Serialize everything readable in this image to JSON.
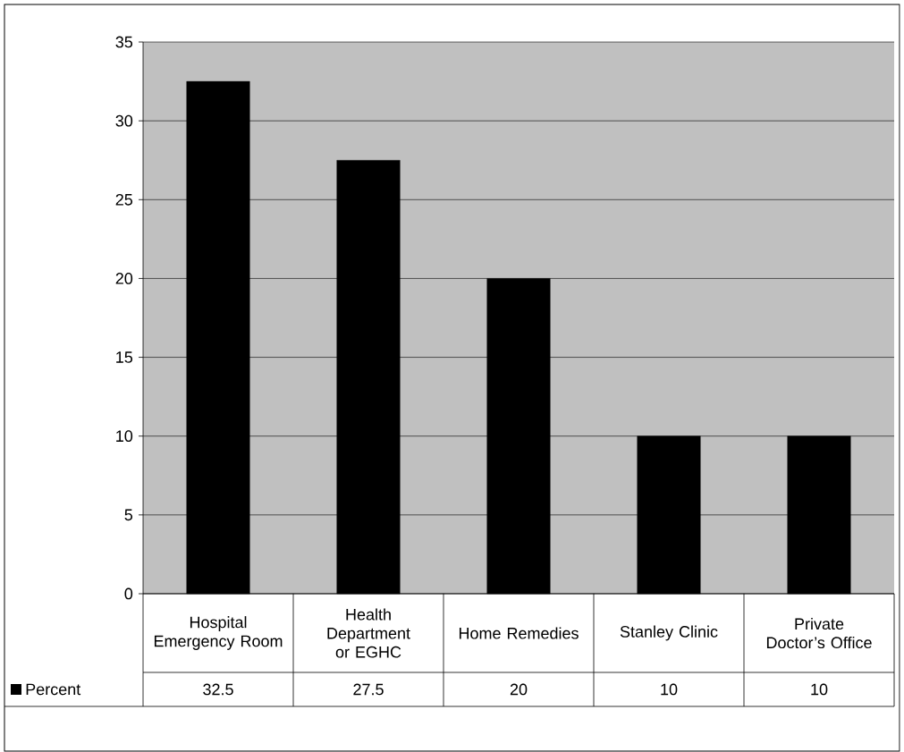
{
  "chart_data": {
    "type": "bar",
    "categories": [
      "Hospital Emergency Room",
      "Health Department or EGHC",
      "Home Remedies",
      "Stanley Clinic",
      "Private Doctor’s Office"
    ],
    "series": [
      {
        "name": "Percent",
        "color": "#000000",
        "values": [
          32.5,
          27.5,
          20,
          10,
          10
        ]
      }
    ],
    "ylim": [
      0,
      35
    ],
    "yticks": [
      0,
      5,
      10,
      15,
      20,
      25,
      30,
      35
    ],
    "grid": "y",
    "data_labels": true
  }
}
